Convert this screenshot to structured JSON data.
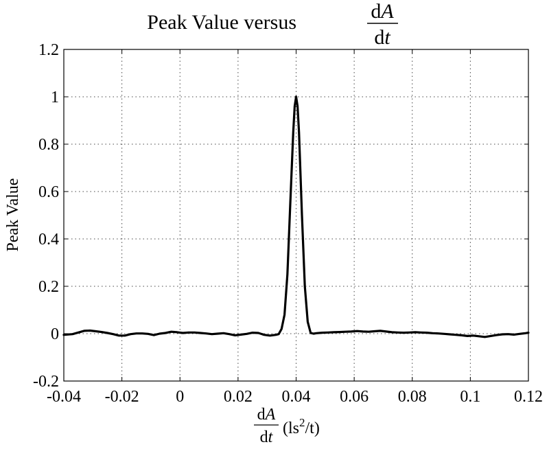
{
  "chart_data": {
    "type": "line",
    "title": {
      "prefix": "Peak Value versus",
      "frac_num": "dA",
      "frac_den": "dt"
    },
    "xlabel": {
      "frac_num": "dA",
      "frac_den": "dt",
      "unit_open": "(ls",
      "unit_sup": "2",
      "unit_close": "/t)"
    },
    "ylabel": "Peak Value",
    "xlim": [
      -0.04,
      0.12
    ],
    "ylim": [
      -0.2,
      1.2
    ],
    "xticks": [
      -0.04,
      -0.02,
      0,
      0.02,
      0.04,
      0.06,
      0.08,
      0.1,
      0.12
    ],
    "xtick_labels": [
      "-0.04",
      "-0.02",
      "0",
      "0.02",
      "0.04",
      "0.06",
      "0.08",
      "0.1",
      "0.12"
    ],
    "yticks": [
      -0.2,
      0,
      0.2,
      0.4,
      0.6,
      0.8,
      1,
      1.2
    ],
    "ytick_labels": [
      "-0.2",
      "0",
      "0.2",
      "0.4",
      "0.6",
      "0.8",
      "1",
      "1.2"
    ],
    "grid": true,
    "grid_style": "dotted",
    "line_color": "#000000",
    "series": [
      {
        "x": [
          -0.04,
          -0.037,
          -0.035,
          -0.033,
          -0.031,
          -0.029,
          -0.027,
          -0.025,
          -0.023,
          -0.021,
          -0.019,
          -0.017,
          -0.015,
          -0.013,
          -0.011,
          -0.009,
          -0.007,
          -0.005,
          -0.003,
          -0.001,
          0.001,
          0.003,
          0.005,
          0.007,
          0.009,
          0.011,
          0.013,
          0.015,
          0.017,
          0.019,
          0.021,
          0.023,
          0.025,
          0.027,
          0.029,
          0.031,
          0.033,
          0.034,
          0.035,
          0.036,
          0.037,
          0.038,
          0.039,
          0.0395,
          0.04,
          0.0405,
          0.041,
          0.042,
          0.043,
          0.044,
          0.045,
          0.046,
          0.047,
          0.049,
          0.051,
          0.053,
          0.055,
          0.057,
          0.059,
          0.061,
          0.063,
          0.065,
          0.067,
          0.069,
          0.071,
          0.073,
          0.075,
          0.077,
          0.079,
          0.081,
          0.083,
          0.085,
          0.087,
          0.089,
          0.091,
          0.093,
          0.095,
          0.097,
          0.099,
          0.101,
          0.103,
          0.105,
          0.107,
          0.109,
          0.111,
          0.113,
          0.115,
          0.117,
          0.119,
          0.12
        ],
        "y": [
          -0.005,
          -0.002,
          0.005,
          0.012,
          0.013,
          0.01,
          0.007,
          0.003,
          -0.002,
          -0.008,
          -0.008,
          -0.002,
          0.001,
          0.001,
          -0.001,
          -0.006,
          0.0,
          0.003,
          0.008,
          0.006,
          0.003,
          0.005,
          0.005,
          0.003,
          0.001,
          -0.002,
          0.0,
          0.002,
          -0.002,
          -0.007,
          -0.004,
          -0.001,
          0.004,
          0.003,
          -0.005,
          -0.008,
          -0.005,
          -0.002,
          0.02,
          0.08,
          0.25,
          0.55,
          0.85,
          0.96,
          1.0,
          0.96,
          0.85,
          0.5,
          0.2,
          0.05,
          0.003,
          0.0,
          0.002,
          0.004,
          0.005,
          0.006,
          0.007,
          0.008,
          0.009,
          0.011,
          0.009,
          0.008,
          0.01,
          0.012,
          0.009,
          0.006,
          0.005,
          0.004,
          0.005,
          0.006,
          0.005,
          0.004,
          0.002,
          0.001,
          -0.001,
          -0.003,
          -0.005,
          -0.007,
          -0.01,
          -0.008,
          -0.011,
          -0.014,
          -0.01,
          -0.006,
          -0.003,
          -0.002,
          -0.004,
          -0.001,
          0.002,
          0.004
        ]
      }
    ]
  }
}
